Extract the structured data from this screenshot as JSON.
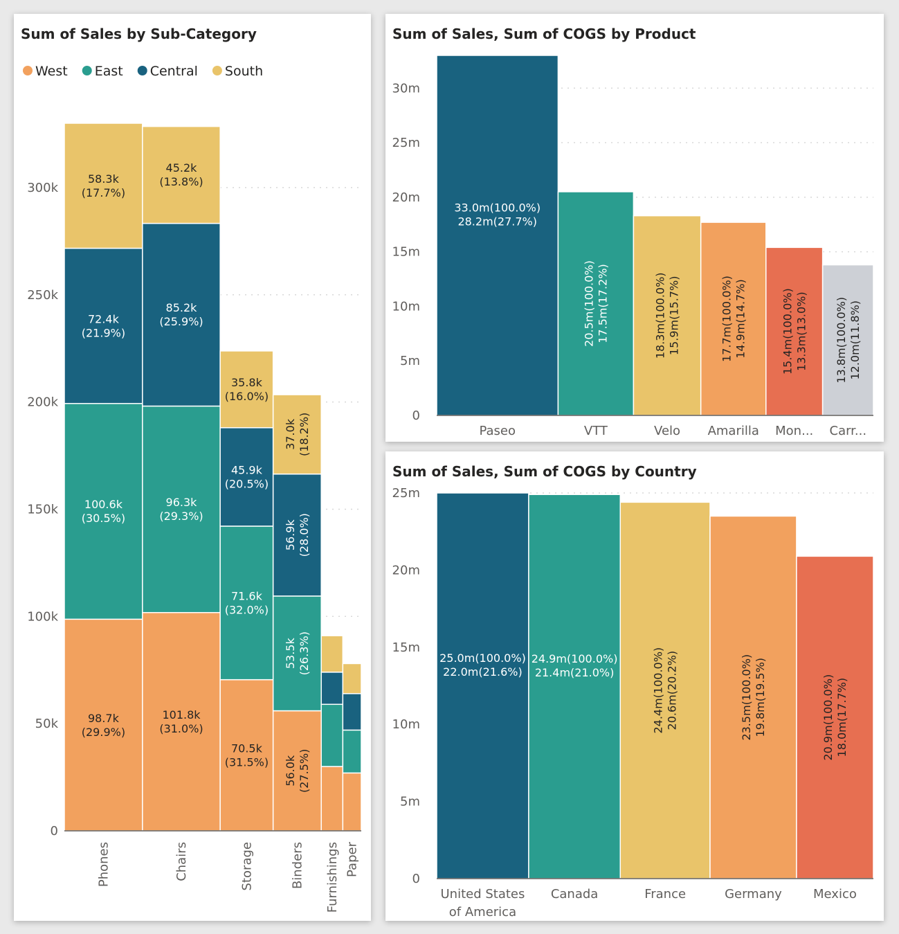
{
  "colors": {
    "West": "#F2A15E",
    "East": "#2A9D8F",
    "Central": "#19627F",
    "South": "#E9C46A",
    "grid": "#d8d8d8",
    "axis": "#605e5c",
    "products": [
      "#19627F",
      "#2A9D8F",
      "#E9C46A",
      "#F2A15E",
      "#E76F51",
      "#CDD0D6"
    ]
  },
  "chart_data": [
    {
      "type": "bar",
      "subtype": "marimekko-stacked",
      "title": "Sum of Sales by Sub-Category",
      "legend": [
        "West",
        "East",
        "Central",
        "South"
      ],
      "legend_position": "top-left",
      "ylim": [
        0,
        330000
      ],
      "yticks": [
        0,
        50000,
        100000,
        150000,
        200000,
        250000,
        300000
      ],
      "ytick_labels": [
        "0",
        "50k",
        "100k",
        "150k",
        "200k",
        "250k",
        "300k"
      ],
      "grid": true,
      "categories": [
        "Phones",
        "Chairs",
        "Storage",
        "Binders",
        "Furnishings",
        "Paper"
      ],
      "series": [
        {
          "name": "West",
          "values": [
            98700,
            101800,
            70500,
            56000,
            30000,
            27000
          ],
          "labels": [
            "98.7k\n(29.9%)",
            "101.8k\n(31.0%)",
            "70.5k\n(31.5%)",
            "56.0k\n(27.5%)",
            "",
            ""
          ],
          "rotated": [
            false,
            false,
            false,
            true,
            false,
            false
          ]
        },
        {
          "name": "East",
          "values": [
            100600,
            96300,
            71600,
            53500,
            29000,
            20000
          ],
          "labels": [
            "100.6k\n(30.5%)",
            "96.3k\n(29.3%)",
            "71.6k\n(32.0%)",
            "53.5k\n(26.3%)",
            "",
            ""
          ],
          "rotated": [
            false,
            false,
            false,
            true,
            false,
            false
          ]
        },
        {
          "name": "Central",
          "values": [
            72400,
            85200,
            45900,
            56900,
            15000,
            17000
          ],
          "labels": [
            "72.4k\n(21.9%)",
            "85.2k\n(25.9%)",
            "45.9k\n(20.5%)",
            "56.9k\n(28.0%)",
            "",
            ""
          ],
          "rotated": [
            false,
            false,
            false,
            true,
            false,
            false
          ]
        },
        {
          "name": "South",
          "values": [
            58300,
            45200,
            35800,
            37000,
            17000,
            14000
          ],
          "labels": [
            "58.3k\n(17.7%)",
            "45.2k\n(13.8%)",
            "35.8k\n(16.0%)",
            "37.0k\n(18.2%)",
            "",
            ""
          ],
          "rotated": [
            false,
            false,
            false,
            true,
            false,
            false
          ]
        }
      ]
    },
    {
      "type": "bar",
      "subtype": "variable-width",
      "title": "Sum of Sales, Sum of COGS by Product",
      "ylim": [
        0,
        33000000
      ],
      "yticks": [
        0,
        5000000,
        10000000,
        15000000,
        20000000,
        25000000,
        30000000
      ],
      "ytick_labels": [
        "0",
        "5m",
        "10m",
        "15m",
        "20m",
        "25m",
        "30m"
      ],
      "grid": true,
      "categories": [
        "Paseo",
        "VTT",
        "Velo",
        "Amarilla",
        "Mon...",
        "Carr..."
      ],
      "series": [
        {
          "name": "Sum of Sales",
          "values": [
            33000000,
            20500000,
            18300000,
            17700000,
            15400000,
            13800000
          ]
        },
        {
          "name": "Sum of COGS",
          "values": [
            28200000,
            17500000,
            15900000,
            14900000,
            13300000,
            12000000
          ]
        }
      ],
      "labels": [
        [
          "33.0m(100.0%)",
          "28.2m(27.7%)"
        ],
        [
          "20.5m(100.0%)",
          "17.5m(17.2%)"
        ],
        [
          "18.3m(100.0%)",
          "15.9m(15.7%)"
        ],
        [
          "17.7m(100.0%)",
          "14.9m(14.7%)"
        ],
        [
          "15.4m(100.0%)",
          "13.3m(13.0%)"
        ],
        [
          "13.8m(100.0%)",
          "12.0m(11.8%)"
        ]
      ],
      "rotated": [
        false,
        true,
        true,
        true,
        true,
        true
      ]
    },
    {
      "type": "bar",
      "subtype": "variable-width",
      "title": "Sum of Sales, Sum of COGS by Country",
      "ylim": [
        0,
        25000000
      ],
      "yticks": [
        0,
        5000000,
        10000000,
        15000000,
        20000000,
        25000000
      ],
      "ytick_labels": [
        "0",
        "5m",
        "10m",
        "15m",
        "20m",
        "25m"
      ],
      "grid": true,
      "categories": [
        "United States of America",
        "Canada",
        "France",
        "Germany",
        "Mexico"
      ],
      "category_lines": [
        [
          "United States",
          "of America"
        ],
        [
          "Canada"
        ],
        [
          "France"
        ],
        [
          "Germany"
        ],
        [
          "Mexico"
        ]
      ],
      "series": [
        {
          "name": "Sum of Sales",
          "values": [
            25000000,
            24900000,
            24400000,
            23500000,
            20900000
          ]
        },
        {
          "name": "Sum of COGS",
          "values": [
            22000000,
            21400000,
            20600000,
            19800000,
            18000000
          ]
        }
      ],
      "labels": [
        [
          "25.0m(100.0%)",
          "22.0m(21.6%)"
        ],
        [
          "24.9m(100.0%)",
          "21.4m(21.0%)"
        ],
        [
          "24.4m(100.0%)",
          "20.6m(20.2%)"
        ],
        [
          "23.5m(100.0%)",
          "19.8m(19.5%)"
        ],
        [
          "20.9m(100.0%)",
          "18.0m(17.7%)"
        ]
      ],
      "rotated": [
        false,
        false,
        true,
        true,
        true
      ]
    }
  ]
}
